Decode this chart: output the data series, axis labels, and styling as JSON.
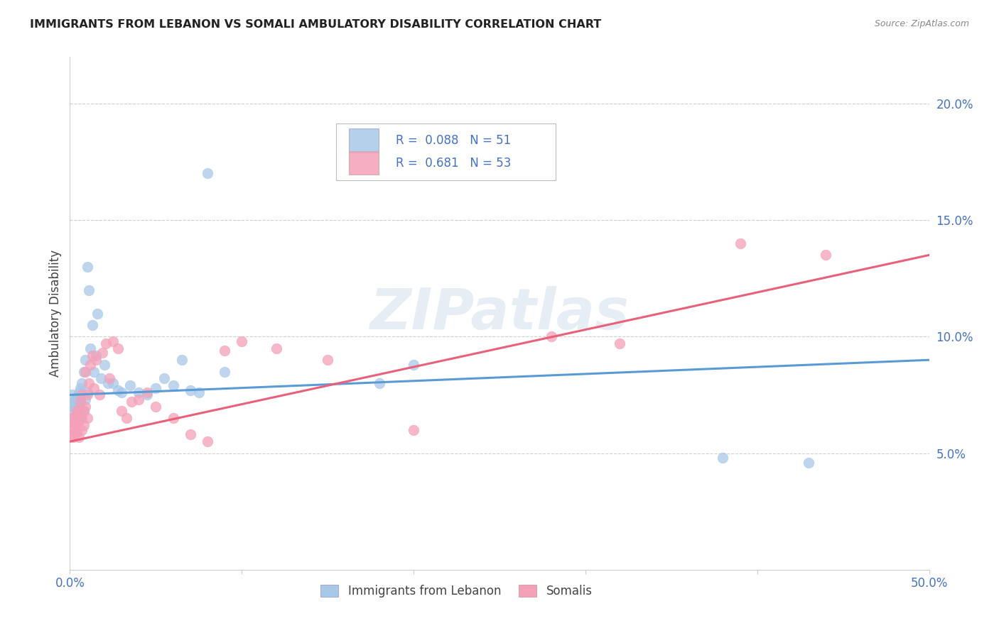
{
  "title": "IMMIGRANTS FROM LEBANON VS SOMALI AMBULATORY DISABILITY CORRELATION CHART",
  "source": "Source: ZipAtlas.com",
  "ylabel": "Ambulatory Disability",
  "xlim": [
    0.0,
    0.5
  ],
  "ylim": [
    0.0,
    0.22
  ],
  "x_ticks": [
    0.0,
    0.1,
    0.2,
    0.3,
    0.4,
    0.5
  ],
  "y_ticks": [
    0.05,
    0.1,
    0.15,
    0.2
  ],
  "x_tick_labels": [
    "0.0%",
    "",
    "",
    "",
    "",
    "50.0%"
  ],
  "y_tick_labels": [
    "5.0%",
    "10.0%",
    "15.0%",
    "20.0%"
  ],
  "legend_label1": "Immigrants from Lebanon",
  "legend_label2": "Somalis",
  "R1": 0.088,
  "N1": 51,
  "R2": 0.681,
  "N2": 53,
  "color_blue": "#a8c8e8",
  "color_pink": "#f4a0b8",
  "line_color_blue": "#5b9bd5",
  "line_color_pink": "#e8607a",
  "background_color": "#ffffff",
  "grid_color": "#d0d0d0",
  "watermark": "ZIPatlas",
  "lebanon_x": [
    0.001,
    0.001,
    0.002,
    0.002,
    0.002,
    0.003,
    0.003,
    0.003,
    0.004,
    0.004,
    0.004,
    0.005,
    0.005,
    0.005,
    0.006,
    0.006,
    0.007,
    0.007,
    0.008,
    0.008,
    0.009,
    0.009,
    0.01,
    0.01,
    0.011,
    0.012,
    0.013,
    0.014,
    0.015,
    0.016,
    0.018,
    0.02,
    0.022,
    0.025,
    0.028,
    0.03,
    0.035,
    0.04,
    0.045,
    0.05,
    0.055,
    0.06,
    0.065,
    0.07,
    0.075,
    0.08,
    0.09,
    0.18,
    0.2,
    0.38,
    0.43
  ],
  "lebanon_y": [
    0.075,
    0.07,
    0.068,
    0.072,
    0.065,
    0.073,
    0.069,
    0.066,
    0.074,
    0.071,
    0.067,
    0.07,
    0.064,
    0.076,
    0.078,
    0.072,
    0.08,
    0.065,
    0.085,
    0.068,
    0.09,
    0.073,
    0.076,
    0.13,
    0.12,
    0.095,
    0.105,
    0.085,
    0.092,
    0.11,
    0.082,
    0.088,
    0.08,
    0.08,
    0.077,
    0.076,
    0.079,
    0.076,
    0.075,
    0.078,
    0.082,
    0.079,
    0.09,
    0.077,
    0.076,
    0.17,
    0.085,
    0.08,
    0.088,
    0.048,
    0.046
  ],
  "somali_x": [
    0.001,
    0.001,
    0.002,
    0.002,
    0.002,
    0.003,
    0.003,
    0.003,
    0.004,
    0.004,
    0.004,
    0.005,
    0.005,
    0.005,
    0.006,
    0.006,
    0.007,
    0.007,
    0.008,
    0.008,
    0.009,
    0.009,
    0.01,
    0.01,
    0.011,
    0.012,
    0.013,
    0.014,
    0.015,
    0.017,
    0.019,
    0.021,
    0.023,
    0.025,
    0.028,
    0.03,
    0.033,
    0.036,
    0.04,
    0.045,
    0.05,
    0.06,
    0.07,
    0.08,
    0.09,
    0.1,
    0.12,
    0.15,
    0.2,
    0.28,
    0.32,
    0.39,
    0.44
  ],
  "somali_y": [
    0.065,
    0.06,
    0.058,
    0.063,
    0.057,
    0.062,
    0.06,
    0.066,
    0.068,
    0.063,
    0.059,
    0.064,
    0.057,
    0.068,
    0.072,
    0.065,
    0.075,
    0.06,
    0.068,
    0.062,
    0.085,
    0.07,
    0.075,
    0.065,
    0.08,
    0.088,
    0.092,
    0.078,
    0.09,
    0.075,
    0.093,
    0.097,
    0.082,
    0.098,
    0.095,
    0.068,
    0.065,
    0.072,
    0.073,
    0.076,
    0.07,
    0.065,
    0.058,
    0.055,
    0.094,
    0.098,
    0.095,
    0.09,
    0.06,
    0.1,
    0.097,
    0.14,
    0.135
  ]
}
